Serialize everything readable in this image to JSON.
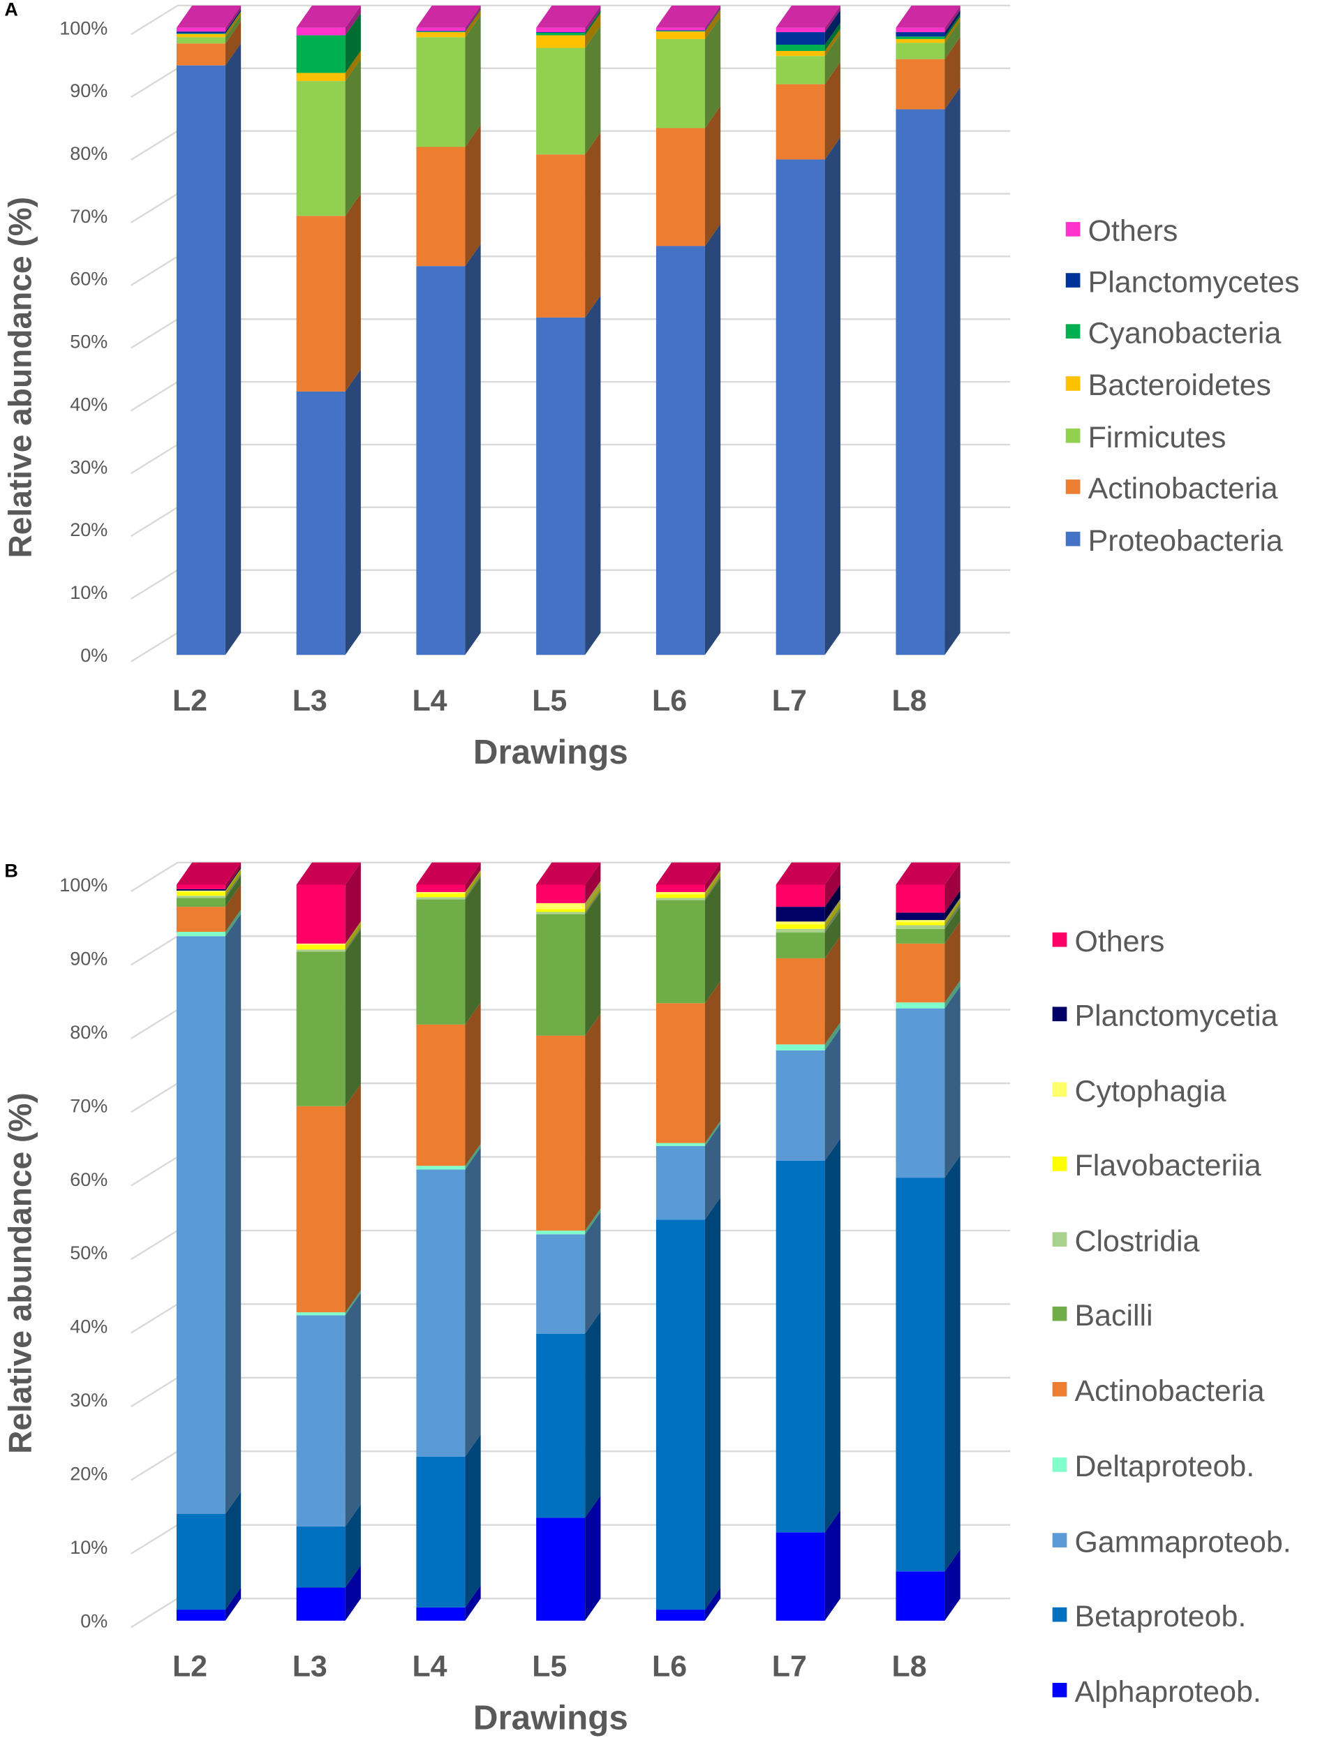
{
  "chart_data": [
    {
      "type": "bar",
      "stacked": true,
      "panel_label": "A",
      "title": "",
      "xlabel": "Drawings",
      "ylabel": "Relative abundance (%)",
      "ylim": [
        0,
        100
      ],
      "yticks": [
        "0%",
        "10%",
        "20%",
        "30%",
        "40%",
        "50%",
        "60%",
        "70%",
        "80%",
        "90%",
        "100%"
      ],
      "grid": true,
      "legend_position": "right",
      "categories": [
        "L2",
        "L3",
        "L4",
        "L5",
        "L6",
        "L7",
        "L8"
      ],
      "series": [
        {
          "name": "Proteobacteria",
          "color": "#4472C4",
          "values": [
            94,
            42,
            62,
            53.8,
            65.2,
            79,
            87
          ]
        },
        {
          "name": "Actinobacteria",
          "color": "#ED7D31",
          "values": [
            3.5,
            28,
            19,
            26,
            18.8,
            12,
            8
          ]
        },
        {
          "name": "Firmicutes",
          "color": "#92D050",
          "values": [
            1,
            21.5,
            17.5,
            17,
            14.2,
            4.5,
            2.6
          ]
        },
        {
          "name": "Bacteroidetes",
          "color": "#FFC000",
          "values": [
            0.5,
            1.3,
            0.8,
            2,
            1.2,
            0.8,
            0.6
          ]
        },
        {
          "name": "Cyanobacteria",
          "color": "#00B050",
          "values": [
            0.1,
            6,
            0.1,
            0.4,
            0.1,
            1,
            0.4
          ]
        },
        {
          "name": "Planctomycetes",
          "color": "#003399",
          "values": [
            0.3,
            0,
            0.1,
            0.1,
            0.1,
            2,
            0.7
          ]
        },
        {
          "name": "Others",
          "color": "#FF33CC",
          "values": [
            0.6,
            1.2,
            0.5,
            0.7,
            0.4,
            0.7,
            0.7
          ]
        }
      ]
    },
    {
      "type": "bar",
      "stacked": true,
      "panel_label": "B",
      "title": "",
      "xlabel": "Drawings",
      "ylabel": "Relative abundance (%)",
      "ylim": [
        0,
        100
      ],
      "yticks": [
        "0%",
        "10%",
        "20%",
        "30%",
        "40%",
        "50%",
        "60%",
        "70%",
        "80%",
        "90%",
        "100%"
      ],
      "grid": true,
      "legend_position": "right",
      "categories": [
        "L2",
        "L3",
        "L4",
        "L5",
        "L6",
        "L7",
        "L8"
      ],
      "series": [
        {
          "name": "Alphaproteob.",
          "color": "#0000FF",
          "values": [
            1.5,
            4.5,
            1.8,
            14,
            1.5,
            12,
            6.7
          ]
        },
        {
          "name": "Betaproteob.",
          "color": "#0070C0",
          "values": [
            13,
            8.3,
            20.5,
            25,
            53,
            50.5,
            53.5
          ]
        },
        {
          "name": "Gammaproteob.",
          "color": "#5B9BD5",
          "values": [
            78.5,
            28.7,
            39,
            13.5,
            10,
            15,
            23
          ]
        },
        {
          "name": "Deltaproteob.",
          "color": "#80FFCC",
          "values": [
            0.6,
            0.4,
            0.5,
            0.5,
            0.4,
            0.8,
            0.8
          ]
        },
        {
          "name": "Actinobacteria",
          "color": "#ED7D31",
          "values": [
            3.4,
            28,
            19.2,
            26.5,
            19,
            11.7,
            8
          ]
        },
        {
          "name": "Bacilli",
          "color": "#70AD47",
          "values": [
            1.2,
            21,
            17,
            16.5,
            14,
            3.5,
            2
          ]
        },
        {
          "name": "Clostridia",
          "color": "#A9D18E",
          "values": [
            0.3,
            0.3,
            0.3,
            0.3,
            0.3,
            0.5,
            0.5
          ]
        },
        {
          "name": "Flavobacteriia",
          "color": "#FFFF00",
          "values": [
            0.5,
            0.6,
            0.5,
            0.4,
            0.5,
            0.6,
            0.4
          ]
        },
        {
          "name": "Cytophagia",
          "color": "#FFFF66",
          "values": [
            0.2,
            0.2,
            0.2,
            0.8,
            0.3,
            0.4,
            0.3
          ]
        },
        {
          "name": "Planctomycetia",
          "color": "#000066",
          "values": [
            0.2,
            0,
            0,
            0,
            0,
            2,
            1
          ]
        },
        {
          "name": "Others",
          "color": "#FF0066",
          "values": [
            0.6,
            8,
            1,
            2.5,
            1,
            3,
            3.8
          ]
        }
      ]
    }
  ]
}
